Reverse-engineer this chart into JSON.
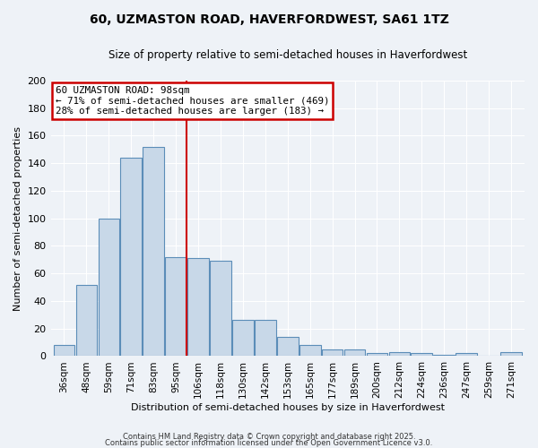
{
  "title1": "60, UZMASTON ROAD, HAVERFORDWEST, SA61 1TZ",
  "title2": "Size of property relative to semi-detached houses in Haverfordwest",
  "xlabel": "Distribution of semi-detached houses by size in Haverfordwest",
  "ylabel": "Number of semi-detached properties",
  "bar_labels": [
    "36sqm",
    "48sqm",
    "59sqm",
    "71sqm",
    "83sqm",
    "95sqm",
    "106sqm",
    "118sqm",
    "130sqm",
    "142sqm",
    "153sqm",
    "165sqm",
    "177sqm",
    "189sqm",
    "200sqm",
    "212sqm",
    "224sqm",
    "236sqm",
    "247sqm",
    "259sqm",
    "271sqm"
  ],
  "bar_values": [
    8,
    52,
    100,
    144,
    152,
    72,
    71,
    69,
    26,
    26,
    14,
    8,
    5,
    5,
    2,
    3,
    2,
    1,
    2,
    0,
    3
  ],
  "bar_color": "#c8d8e8",
  "bar_edge_color": "#5b8db8",
  "property_label": "60 UZMASTON ROAD: 98sqm",
  "smaller_pct": 71,
  "smaller_count": 469,
  "larger_pct": 28,
  "larger_count": 183,
  "vline_color": "#cc0000",
  "annotation_box_color": "#cc0000",
  "ylim": [
    0,
    200
  ],
  "yticks": [
    0,
    20,
    40,
    60,
    80,
    100,
    120,
    140,
    160,
    180,
    200
  ],
  "footer1": "Contains HM Land Registry data © Crown copyright and database right 2025.",
  "footer2": "Contains public sector information licensed under the Open Government Licence v3.0.",
  "bg_color": "#eef2f7",
  "grid_color": "#ffffff"
}
